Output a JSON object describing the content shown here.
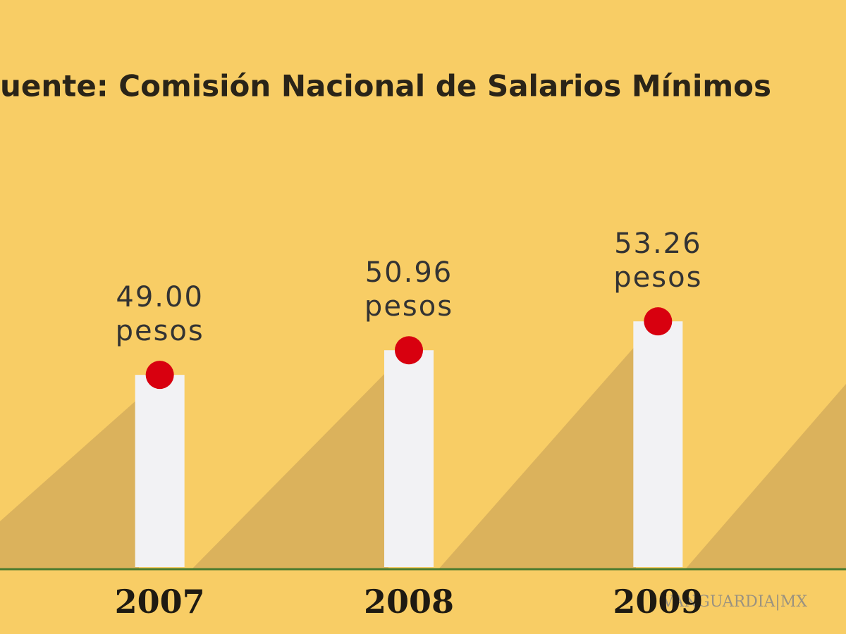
{
  "chart_data": {
    "type": "bar",
    "title": "uente: Comisión Nacional de Salarios Mínimos",
    "categories": [
      "2007",
      "2008",
      "2009"
    ],
    "values": [
      49.0,
      50.96,
      53.26
    ],
    "value_labels": [
      "49.00 pesos",
      "50.96 pesos",
      "53.26 pesos"
    ],
    "color": "#f2f2f4",
    "marker_color": "#d8000f",
    "ylim": [
      33.7,
      78
    ],
    "watermark": "VANGUARDIA|MX"
  }
}
